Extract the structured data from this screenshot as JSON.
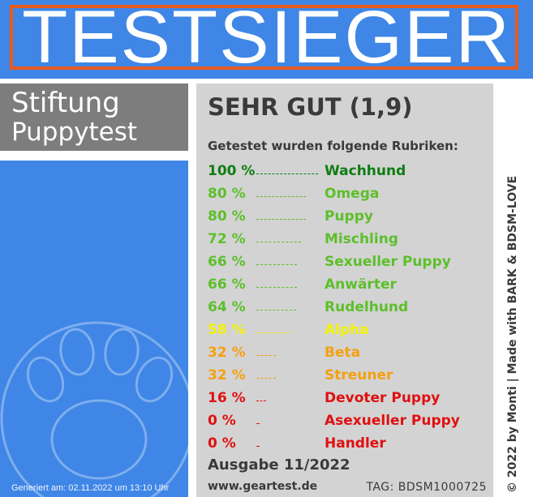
{
  "header": {
    "title": "TESTSIEGER"
  },
  "organization": {
    "line1": "Stiftung",
    "line2": "Puppytest"
  },
  "rating": {
    "label": "SEHR GUT (1,9)"
  },
  "subheading": "Getestet wurden folgende Rubriken:",
  "categories": [
    {
      "percent": "100 %",
      "value": 100,
      "name": "Wachhund",
      "color": "#0e7d12"
    },
    {
      "percent": "80 %",
      "value": 80,
      "name": "Omega",
      "color": "#5dbf2a"
    },
    {
      "percent": "80 %",
      "value": 80,
      "name": "Puppy",
      "color": "#5dbf2a"
    },
    {
      "percent": "72 %",
      "value": 72,
      "name": "Mischling",
      "color": "#5dbf2a"
    },
    {
      "percent": "66 %",
      "value": 66,
      "name": "Sexueller Puppy",
      "color": "#5dbf2a"
    },
    {
      "percent": "66 %",
      "value": 66,
      "name": "Anwärter",
      "color": "#5dbf2a"
    },
    {
      "percent": "64 %",
      "value": 64,
      "name": "Rudelhund",
      "color": "#5dbf2a"
    },
    {
      "percent": "58 %",
      "value": 58,
      "name": "Alpha",
      "color": "#f2f20a"
    },
    {
      "percent": "32 %",
      "value": 32,
      "name": "Beta",
      "color": "#f4a012"
    },
    {
      "percent": "32 %",
      "value": 32,
      "name": "Streuner",
      "color": "#f4a012"
    },
    {
      "percent": "16 %",
      "value": 16,
      "name": "Devoter Puppy",
      "color": "#e01010"
    },
    {
      "percent": "0 %",
      "value": 0,
      "name": "Asexueller Puppy",
      "color": "#e01010"
    },
    {
      "percent": "0 %",
      "value": 0,
      "name": "Handler",
      "color": "#e01010"
    }
  ],
  "issue": "Ausgabe 11/2022",
  "website": "www.geartest.de",
  "tag": "TAG: BDSM1000725",
  "generated": "Generiert am: 02.11.2022 um 13:10 Uhr",
  "credit": "© 2022 by Monti | Made with BARK & BDSM-LOVE",
  "icons": {
    "paw": "paw-print-icon"
  },
  "colors": {
    "blue": "#3f86e6",
    "orange_frame": "#ea5a1c",
    "gray_box": "#7d7d7d",
    "panel": "#d3d3d3"
  }
}
